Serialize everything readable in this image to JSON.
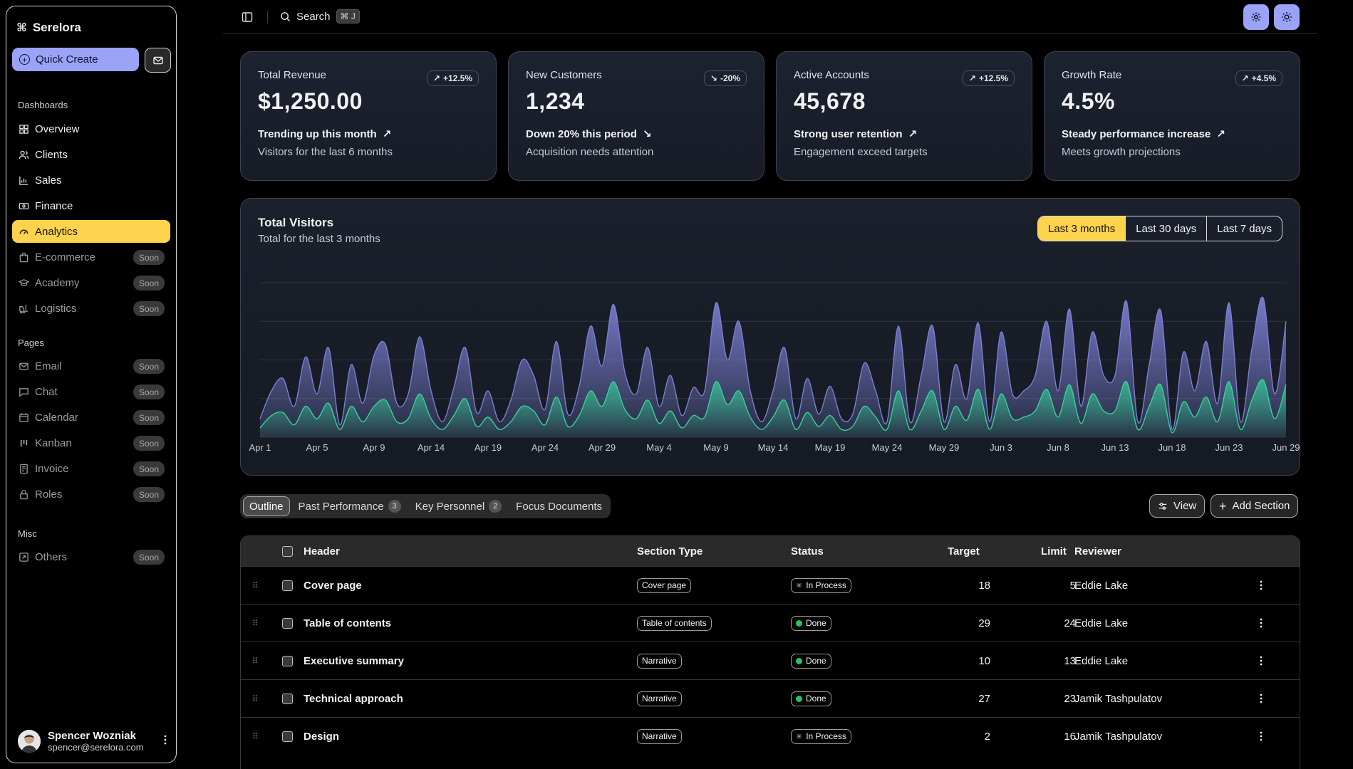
{
  "brand": {
    "name": "Serelora"
  },
  "sidebar": {
    "quick_create": "Quick Create",
    "groups": {
      "dashboards": "Dashboards",
      "pages": "Pages",
      "misc": "Misc"
    },
    "soon_label": "Soon",
    "items": [
      {
        "label": "Overview"
      },
      {
        "label": "Clients"
      },
      {
        "label": "Sales"
      },
      {
        "label": "Finance"
      },
      {
        "label": "Analytics"
      },
      {
        "label": "E-commerce"
      },
      {
        "label": "Academy"
      },
      {
        "label": "Logistics"
      },
      {
        "label": "Email"
      },
      {
        "label": "Chat"
      },
      {
        "label": "Calendar"
      },
      {
        "label": "Kanban"
      },
      {
        "label": "Invoice"
      },
      {
        "label": "Roles"
      },
      {
        "label": "Others"
      }
    ],
    "user": {
      "name": "Spencer Wozniak",
      "email": "spencer@serelora.com"
    }
  },
  "topbar": {
    "search_label": "Search",
    "shortcut": "⌘ J"
  },
  "stats": [
    {
      "label": "Total Revenue",
      "value": "$1,250.00",
      "badge": "+12.5%",
      "trend": "Trending up this month",
      "sub": "Visitors for the last 6 months",
      "direction": "up"
    },
    {
      "label": "New Customers",
      "value": "1,234",
      "badge": "-20%",
      "trend": "Down 20% this period",
      "sub": "Acquisition needs attention",
      "direction": "down"
    },
    {
      "label": "Active Accounts",
      "value": "45,678",
      "badge": "+12.5%",
      "trend": "Strong user retention",
      "sub": "Engagement exceed targets",
      "direction": "up"
    },
    {
      "label": "Growth Rate",
      "value": "4.5%",
      "badge": "+4.5%",
      "trend": "Steady performance increase",
      "sub": "Meets growth projections",
      "direction": "up"
    }
  ],
  "visitors": {
    "title": "Total Visitors",
    "subtitle": "Total for the last 3 months",
    "ranges": [
      "Last 3 months",
      "Last 30 days",
      "Last 7 days"
    ],
    "selected_range": "Last 3 months"
  },
  "chart_data": {
    "type": "area",
    "x_ticks": [
      "Apr 1",
      "Apr 5",
      "Apr 9",
      "Apr 14",
      "Apr 19",
      "Apr 24",
      "Apr 29",
      "May 4",
      "May 9",
      "May 14",
      "May 19",
      "May 24",
      "May 29",
      "Jun 3",
      "Jun 8",
      "Jun 13",
      "Jun 18",
      "Jun 23",
      "Jun 29"
    ],
    "grid": true,
    "colors": {
      "desktop": "#7b7fd1",
      "mobile": "#34d399"
    },
    "series": [
      {
        "values": [
          0.12,
          0.3,
          0.38,
          0.2,
          0.52,
          0.28,
          0.58,
          0.08,
          0.47,
          0.22,
          0.53,
          0.6,
          0.22,
          0.28,
          0.65,
          0.3,
          0.1,
          0.32,
          0.58,
          0.16,
          0.3,
          0.1,
          0.24,
          0.5,
          0.4,
          0.18,
          0.62,
          0.15,
          0.33,
          0.72,
          0.46,
          0.86,
          0.42,
          0.28,
          0.58,
          0.2,
          0.4,
          0.14,
          0.32,
          0.3,
          0.87,
          0.5,
          0.75,
          0.3,
          0.1,
          0.3,
          0.58,
          0.12,
          0.38,
          0.15,
          0.33,
          0.12,
          0.15,
          0.48,
          0.3,
          0.1,
          0.72,
          0.1,
          0.4,
          0.72,
          0.1,
          0.47,
          0.25,
          0.74,
          0.1,
          0.68,
          0.28,
          0.3,
          0.4,
          0.75,
          0.3,
          0.83,
          0.2,
          0.68,
          0.4,
          0.4,
          0.88,
          0.1,
          0.47,
          0.82,
          0.05,
          0.55,
          0.3,
          0.62,
          0.22,
          0.87,
          0.1,
          0.57,
          0.9,
          0.28,
          0.75
        ]
      },
      {
        "values": [
          0.06,
          0.14,
          0.16,
          0.08,
          0.2,
          0.12,
          0.22,
          0.05,
          0.2,
          0.1,
          0.2,
          0.24,
          0.1,
          0.12,
          0.28,
          0.12,
          0.05,
          0.14,
          0.25,
          0.07,
          0.13,
          0.05,
          0.1,
          0.2,
          0.17,
          0.08,
          0.26,
          0.07,
          0.14,
          0.3,
          0.2,
          0.36,
          0.18,
          0.12,
          0.24,
          0.09,
          0.17,
          0.06,
          0.14,
          0.13,
          0.36,
          0.21,
          0.3,
          0.13,
          0.05,
          0.13,
          0.24,
          0.05,
          0.16,
          0.07,
          0.14,
          0.05,
          0.07,
          0.2,
          0.13,
          0.05,
          0.3,
          0.05,
          0.17,
          0.3,
          0.05,
          0.2,
          0.11,
          0.31,
          0.05,
          0.28,
          0.12,
          0.13,
          0.17,
          0.31,
          0.13,
          0.34,
          0.09,
          0.28,
          0.17,
          0.17,
          0.36,
          0.05,
          0.2,
          0.34,
          0.03,
          0.23,
          0.13,
          0.26,
          0.1,
          0.36,
          0.05,
          0.24,
          0.37,
          0.12,
          0.34
        ]
      }
    ]
  },
  "table_tabs": [
    {
      "label": "Outline",
      "count": ""
    },
    {
      "label": "Past Performance",
      "count": "3"
    },
    {
      "label": "Key Personnel",
      "count": "2"
    },
    {
      "label": "Focus Documents",
      "count": ""
    }
  ],
  "actions": {
    "view": "View",
    "add_section": "Add Section"
  },
  "table": {
    "headers": [
      "Header",
      "Section Type",
      "Status",
      "Target",
      "Limit",
      "Reviewer"
    ],
    "rows": [
      {
        "header": "Cover page",
        "type": "Cover page",
        "status": "In Process",
        "target": "18",
        "limit": "5",
        "reviewer": "Eddie Lake"
      },
      {
        "header": "Table of contents",
        "type": "Table of contents",
        "status": "Done",
        "target": "29",
        "limit": "24",
        "reviewer": "Eddie Lake"
      },
      {
        "header": "Executive summary",
        "type": "Narrative",
        "status": "Done",
        "target": "10",
        "limit": "13",
        "reviewer": "Eddie Lake"
      },
      {
        "header": "Technical approach",
        "type": "Narrative",
        "status": "Done",
        "target": "27",
        "limit": "23",
        "reviewer": "Jamik Tashpulatov"
      },
      {
        "header": "Design",
        "type": "Narrative",
        "status": "In Process",
        "target": "2",
        "limit": "16",
        "reviewer": "Jamik Tashpulatov"
      }
    ]
  }
}
